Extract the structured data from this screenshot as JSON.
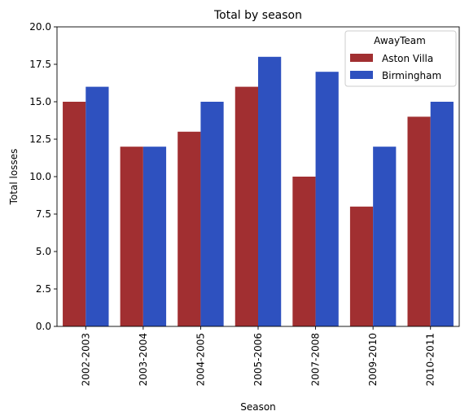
{
  "chart_data": {
    "type": "bar",
    "title": "Total by season",
    "xlabel": "Season",
    "ylabel": "Total losses",
    "categories": [
      "2002-2003",
      "2003-2004",
      "2004-2005",
      "2005-2006",
      "2007-2008",
      "2009-2010",
      "2010-2011"
    ],
    "series": [
      {
        "name": "Aston Villa",
        "values": [
          15,
          12,
          13,
          16,
          10,
          8,
          14
        ],
        "color": "#a12f31"
      },
      {
        "name": "Birmingham",
        "values": [
          16,
          12,
          15,
          18,
          17,
          12,
          15
        ],
        "color": "#2e51bf"
      }
    ],
    "ylim": [
      0,
      20
    ],
    "yticks": [
      "0.0",
      "2.5",
      "5.0",
      "7.5",
      "10.0",
      "12.5",
      "15.0",
      "17.5",
      "20.0"
    ],
    "grid": false,
    "legend": {
      "title": "AwayTeam",
      "placement": "top-right"
    }
  }
}
